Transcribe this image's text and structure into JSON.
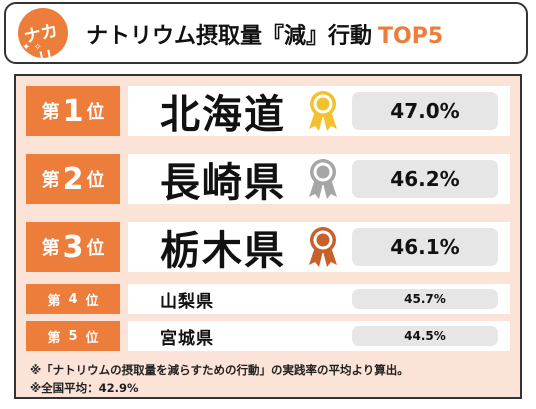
{
  "header": {
    "logo_text": "ナカリ",
    "title_main": "ナトリウム摂取量『減』行動",
    "title_accent": "TOP5",
    "accent_color": "#ed7d3a"
  },
  "rank_parts": {
    "prefix": "第",
    "suffix": "位"
  },
  "chart_data": {
    "type": "table",
    "columns": [
      "rank",
      "prefecture",
      "rate"
    ],
    "rows": [
      {
        "rank": "1",
        "prefecture": "北海道",
        "rate": "47.0%",
        "value": 47.0,
        "medal": "gold"
      },
      {
        "rank": "2",
        "prefecture": "長崎県",
        "rate": "46.2%",
        "value": 46.2,
        "medal": "silver"
      },
      {
        "rank": "3",
        "prefecture": "栃木県",
        "rate": "46.1%",
        "value": 46.1,
        "medal": "bronze"
      },
      {
        "rank": "4",
        "prefecture": "山梨県",
        "rate": "45.7%",
        "value": 45.7,
        "medal": null
      },
      {
        "rank": "5",
        "prefecture": "宮城県",
        "rate": "44.5%",
        "value": 44.5,
        "medal": null
      }
    ]
  },
  "medal_colors": {
    "gold": "#f2c12e",
    "silver": "#a6a6a6",
    "bronze": "#c8602a"
  },
  "footnotes": [
    "※「ナトリウムの摂取量を減らすための行動」の実践率の平均より算出。",
    "※全国平均：42.9%"
  ]
}
